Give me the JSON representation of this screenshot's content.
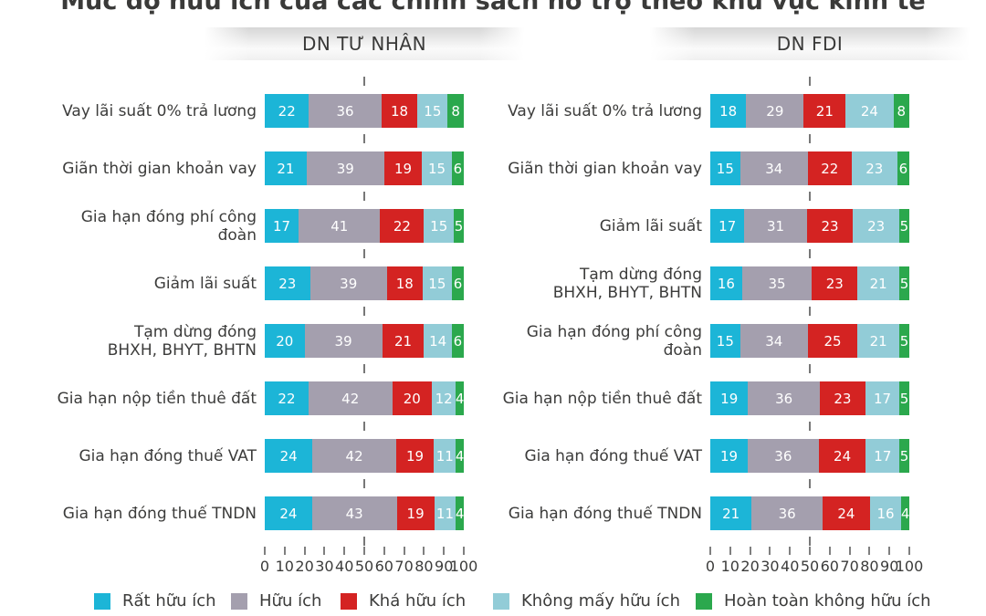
{
  "title": "Mức độ hữu ích của các chính sách hỗ trợ theo khu vực kinh tế",
  "chart_data": {
    "type": "bar",
    "orientation": "horizontal",
    "stacked": true,
    "unit": "%",
    "guide_line_at": 50,
    "axis": {
      "ticks": [
        0,
        10,
        20,
        30,
        40,
        50,
        60,
        70,
        80,
        90,
        100
      ],
      "range": [
        0,
        100
      ],
      "position": "bottom"
    },
    "legend": [
      {
        "label": "Rất hữu ích",
        "color": "#1CB5D7"
      },
      {
        "label": "Hữu ích",
        "color": "#A49FAE"
      },
      {
        "label": "Khá hữu ích",
        "color": "#D42322"
      },
      {
        "label": "Không mấy hữu ích",
        "color": "#92CCD7"
      },
      {
        "label": "Hoàn toàn không hữu ích",
        "color": "#2BA84D"
      }
    ],
    "panels": [
      {
        "header": "DN TƯ NHÂN",
        "rows": [
          {
            "label": "Vay lãi suất 0% trả lương",
            "values": [
              22,
              36,
              18,
              15,
              8
            ]
          },
          {
            "label": "Giãn thời gian khoản vay",
            "values": [
              21,
              39,
              19,
              15,
              6
            ]
          },
          {
            "label": "Gia hạn đóng phí công đoàn",
            "values": [
              17,
              41,
              22,
              15,
              5
            ]
          },
          {
            "label": "Giảm lãi suất",
            "values": [
              23,
              39,
              18,
              15,
              6
            ]
          },
          {
            "label": "Tạm dừng đóng\nBHXH, BHYT, BHTN",
            "values": [
              20,
              39,
              21,
              14,
              6
            ]
          },
          {
            "label": "Gia hạn nộp tiền thuê đất",
            "values": [
              22,
              42,
              20,
              12,
              4
            ]
          },
          {
            "label": "Gia hạn đóng thuế VAT",
            "values": [
              24,
              42,
              19,
              11,
              4
            ]
          },
          {
            "label": "Gia hạn đóng thuế TNDN",
            "values": [
              24,
              43,
              19,
              11,
              4
            ]
          }
        ]
      },
      {
        "header": "DN FDI",
        "rows": [
          {
            "label": "Vay lãi suất 0% trả lương",
            "values": [
              18,
              29,
              21,
              24,
              8
            ]
          },
          {
            "label": "Giãn thời gian khoản vay",
            "values": [
              15,
              34,
              22,
              23,
              6
            ]
          },
          {
            "label": "Giảm lãi suất",
            "values": [
              17,
              31,
              23,
              23,
              5
            ]
          },
          {
            "label": "Tạm dừng đóng\nBHXH, BHYT, BHTN",
            "values": [
              16,
              35,
              23,
              21,
              5
            ]
          },
          {
            "label": "Gia hạn đóng phí công đoàn",
            "values": [
              15,
              34,
              25,
              21,
              5
            ]
          },
          {
            "label": "Gia hạn nộp tiền thuê đất",
            "values": [
              19,
              36,
              23,
              17,
              5
            ]
          },
          {
            "label": "Gia hạn đóng thuế VAT",
            "values": [
              19,
              36,
              24,
              17,
              5
            ]
          },
          {
            "label": "Gia hạn đóng thuế TNDN",
            "values": [
              21,
              36,
              24,
              16,
              4
            ]
          }
        ]
      }
    ]
  }
}
